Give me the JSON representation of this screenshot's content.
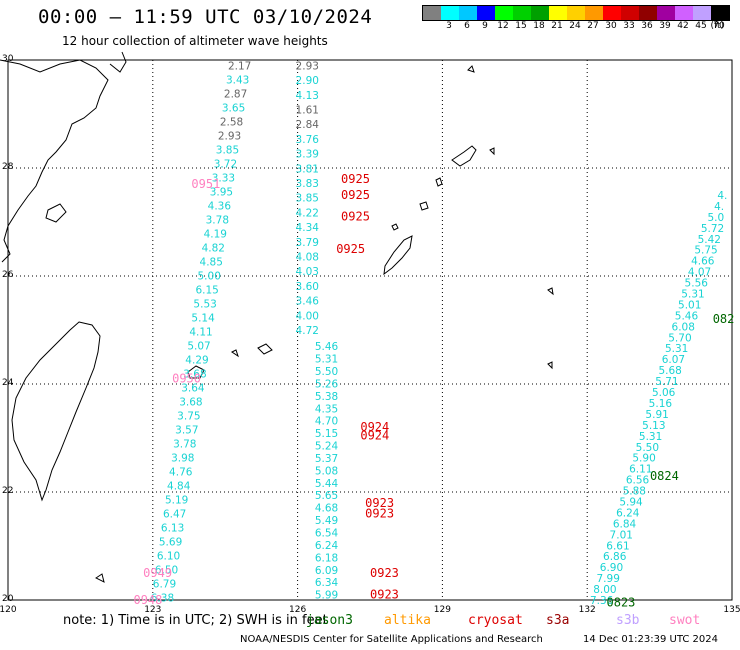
{
  "title": "00:00 – 11:59 UTC 03/10/2024",
  "subtitle": "12 hour collection of altimeter wave heights",
  "colorbar": {
    "unit": "(ft)",
    "ticks": [
      "3",
      "6",
      "9",
      "12",
      "15",
      "18",
      "21",
      "24",
      "27",
      "30",
      "33",
      "36",
      "39",
      "42",
      "45",
      "70"
    ],
    "colors": [
      "#808080",
      "#00ffff",
      "#00c8ff",
      "#0000ff",
      "#00ff00",
      "#00d000",
      "#00a000",
      "#ffff00",
      "#ffd000",
      "#ff9900",
      "#ff0000",
      "#d00000",
      "#900000",
      "#a000a0",
      "#d060ff",
      "#c0a0ff",
      "#000000"
    ]
  },
  "map": {
    "lat_labels": [
      "30",
      "28",
      "26",
      "24",
      "22",
      "20"
    ],
    "lon_labels": [
      "120",
      "123",
      "126",
      "129",
      "132",
      "135"
    ]
  },
  "colors": {
    "gray": "#666666",
    "cyan": "#19d3d3",
    "red": "#dd0000",
    "pink": "#ff80c0",
    "green": "#006600"
  },
  "tracks": [
    {
      "lon": 123.0,
      "lat_top": 29.9,
      "lat_bottom": 20.05,
      "color": "cyan",
      "values": [
        "2.17",
        "3.43",
        "2.87",
        "3.65",
        "2.58",
        "2.93",
        "3.85",
        "3.72",
        "3.33",
        "3.95",
        "4.36",
        "3.78",
        "4.19",
        "4.82",
        "4.85",
        "5.00",
        "6.15",
        "5.53",
        "5.14",
        "4.11",
        "5.07",
        "4.29",
        "3.68",
        "3.64",
        "3.68",
        "3.75",
        "3.57",
        "3.78",
        "3.98",
        "4.76",
        "4.84",
        "5.19",
        "6.47",
        "6.13",
        "5.69",
        "6.10",
        "6.50",
        "6.79",
        "6.38"
      ],
      "gray_idx": [
        0,
        2,
        4,
        5
      ]
    },
    {
      "lon": 126.2,
      "lat_top": 29.9,
      "lat_bottom": 25.0,
      "color": "cyan",
      "values": [
        "2.93",
        "2.90",
        "4.13",
        "1.61",
        "2.84",
        "3.76",
        "3.39",
        "3.81",
        "3.83",
        "3.85",
        "4.22",
        "4.34",
        "3.79",
        "4.08",
        "4.03",
        "3.60",
        "3.46",
        "4.00",
        "4.72"
      ],
      "gray_idx": [
        0,
        3,
        4
      ]
    },
    {
      "lon": 126.6,
      "lat_top": 24.7,
      "lat_bottom": 20.1,
      "color": "cyan",
      "values": [
        "5.46",
        "5.31",
        "5.50",
        "5.26",
        "5.38",
        "4.35",
        "4.70",
        "5.15",
        "5.24",
        "5.37",
        "5.08",
        "5.44",
        "5.65",
        "4.68",
        "5.49",
        "6.54",
        "6.24",
        "6.18",
        "6.09",
        "6.34",
        "5.99"
      ],
      "gray_idx": []
    },
    {
      "lon": 134.8,
      "lat_top": 27.5,
      "lat_bottom": 20.0,
      "color": "cyan",
      "values": [
        "4.",
        "4.",
        "5.0",
        "5.72",
        "5.42",
        "5.75",
        "4.66",
        "4.07",
        "5.56",
        "5.31",
        "5.01",
        "5.46",
        "6.08",
        "5.70",
        "5.31",
        "6.07",
        "5.68",
        "5.71",
        "5.06",
        "5.16",
        "5.91",
        "5.13",
        "5.31",
        "5.50",
        "5.90",
        "6.11",
        "6.56",
        "5.88",
        "5.94",
        "6.24",
        "6.84",
        "7.01",
        "6.61",
        "6.86",
        "6.90",
        "7.99",
        "8.00",
        "7.36"
      ],
      "gray_idx": []
    }
  ],
  "pass_labels": [
    {
      "text": "0951",
      "lon": 123.8,
      "lat": 27.7,
      "color": "pink"
    },
    {
      "text": "0950",
      "lon": 123.4,
      "lat": 24.1,
      "color": "pink"
    },
    {
      "text": "0949",
      "lon": 122.8,
      "lat": 20.5,
      "color": "pink"
    },
    {
      "text": "0948",
      "lon": 122.6,
      "lat": 20.0,
      "color": "pink"
    },
    {
      "text": "0925",
      "lon": 126.9,
      "lat": 27.8,
      "color": "red"
    },
    {
      "text": "0925",
      "lon": 126.9,
      "lat": 27.5,
      "color": "red"
    },
    {
      "text": "0925",
      "lon": 126.9,
      "lat": 27.1,
      "color": "red"
    },
    {
      "text": "0925",
      "lon": 126.8,
      "lat": 26.5,
      "color": "red"
    },
    {
      "text": "0924",
      "lon": 127.3,
      "lat": 23.2,
      "color": "red"
    },
    {
      "text": "0924",
      "lon": 127.3,
      "lat": 23.05,
      "color": "red"
    },
    {
      "text": "0923",
      "lon": 127.4,
      "lat": 21.8,
      "color": "red"
    },
    {
      "text": "0923",
      "lon": 127.4,
      "lat": 21.6,
      "color": "red"
    },
    {
      "text": "0923",
      "lon": 127.5,
      "lat": 20.5,
      "color": "red"
    },
    {
      "text": "0923",
      "lon": 127.5,
      "lat": 20.1,
      "color": "red"
    },
    {
      "text": "082",
      "lon": 134.6,
      "lat": 25.2,
      "color": "green"
    },
    {
      "text": "0824",
      "lon": 133.3,
      "lat": 22.3,
      "color": "green"
    },
    {
      "text": "0823",
      "lon": 132.4,
      "lat": 19.95,
      "color": "green"
    }
  ],
  "note": "note:  1) Time is in UTC; 2) SWH is in feet",
  "satellites": [
    {
      "name": "jason3",
      "color": "#006600",
      "left": 0
    },
    {
      "name": "altika",
      "color": "#ff9900",
      "left": 78
    },
    {
      "name": "cryosat",
      "color": "#dd0000",
      "left": 162
    },
    {
      "name": "s3a",
      "color": "#990000",
      "left": 240
    },
    {
      "name": "s3b",
      "color": "#c0a0ff",
      "left": 310
    },
    {
      "name": "swot",
      "color": "#ff80c0",
      "left": 363
    }
  ],
  "footer": "NOAA/NESDIS Center for Satellite Applications and Research",
  "timestamp": "14 Dec 01:23:39 UTC 2024"
}
